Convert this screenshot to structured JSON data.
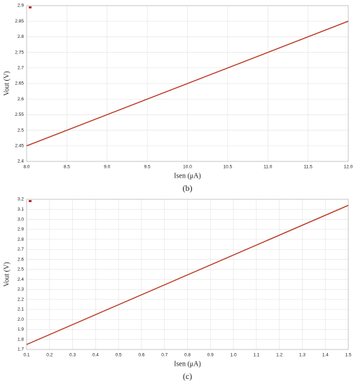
{
  "chart_data": [
    {
      "type": "line",
      "ylabel": "Vout (V)",
      "xlabel": "Isen (μA)",
      "caption": "(b)",
      "x": [
        8,
        12
      ],
      "series": [
        {
          "color": "#b8351d",
          "values": [
            2.45,
            2.85
          ]
        }
      ],
      "xlim": [
        8,
        12
      ],
      "xticks": [
        {
          "value": 8,
          "label": "8.0"
        },
        8.5,
        {
          "value": 9,
          "label": "9.0"
        },
        9.5,
        {
          "value": 10,
          "label": "10.0"
        },
        10.5,
        {
          "value": 11,
          "label": "11.0"
        },
        11.5,
        {
          "value": 12,
          "label": "12.0"
        }
      ],
      "ylim": [
        2.4,
        2.9
      ],
      "yticks": [
        2.4,
        2.45,
        2.5,
        2.55,
        2.6,
        2.65,
        2.7,
        2.75,
        2.8,
        2.85,
        2.9
      ],
      "grid": true
    },
    {
      "type": "line",
      "ylabel": "Vout (V)",
      "xlabel": "Isen (μA)",
      "caption": "(c)",
      "x": [
        0.1,
        1.5
      ],
      "series": [
        {
          "color": "#b8351d",
          "values": [
            1.75,
            3.14
          ]
        }
      ],
      "xlim": [
        0.1,
        1.5
      ],
      "xticks": [
        0.1,
        0.2,
        0.3,
        0.4,
        0.5,
        0.6,
        0.7,
        0.8,
        0.9,
        {
          "value": 1,
          "label": "1.0"
        },
        1.1,
        1.2,
        1.3,
        1.4,
        1.5
      ],
      "ylim": [
        1.7,
        3.2
      ],
      "yticks": [
        1.7,
        1.8,
        1.9,
        {
          "value": 2,
          "label": "2.0"
        },
        2.1,
        2.2,
        2.3,
        2.4,
        2.5,
        2.6,
        2.7,
        2.8,
        2.9,
        {
          "value": 3,
          "label": "3.0"
        },
        3.1,
        3.2
      ],
      "grid": true
    }
  ]
}
